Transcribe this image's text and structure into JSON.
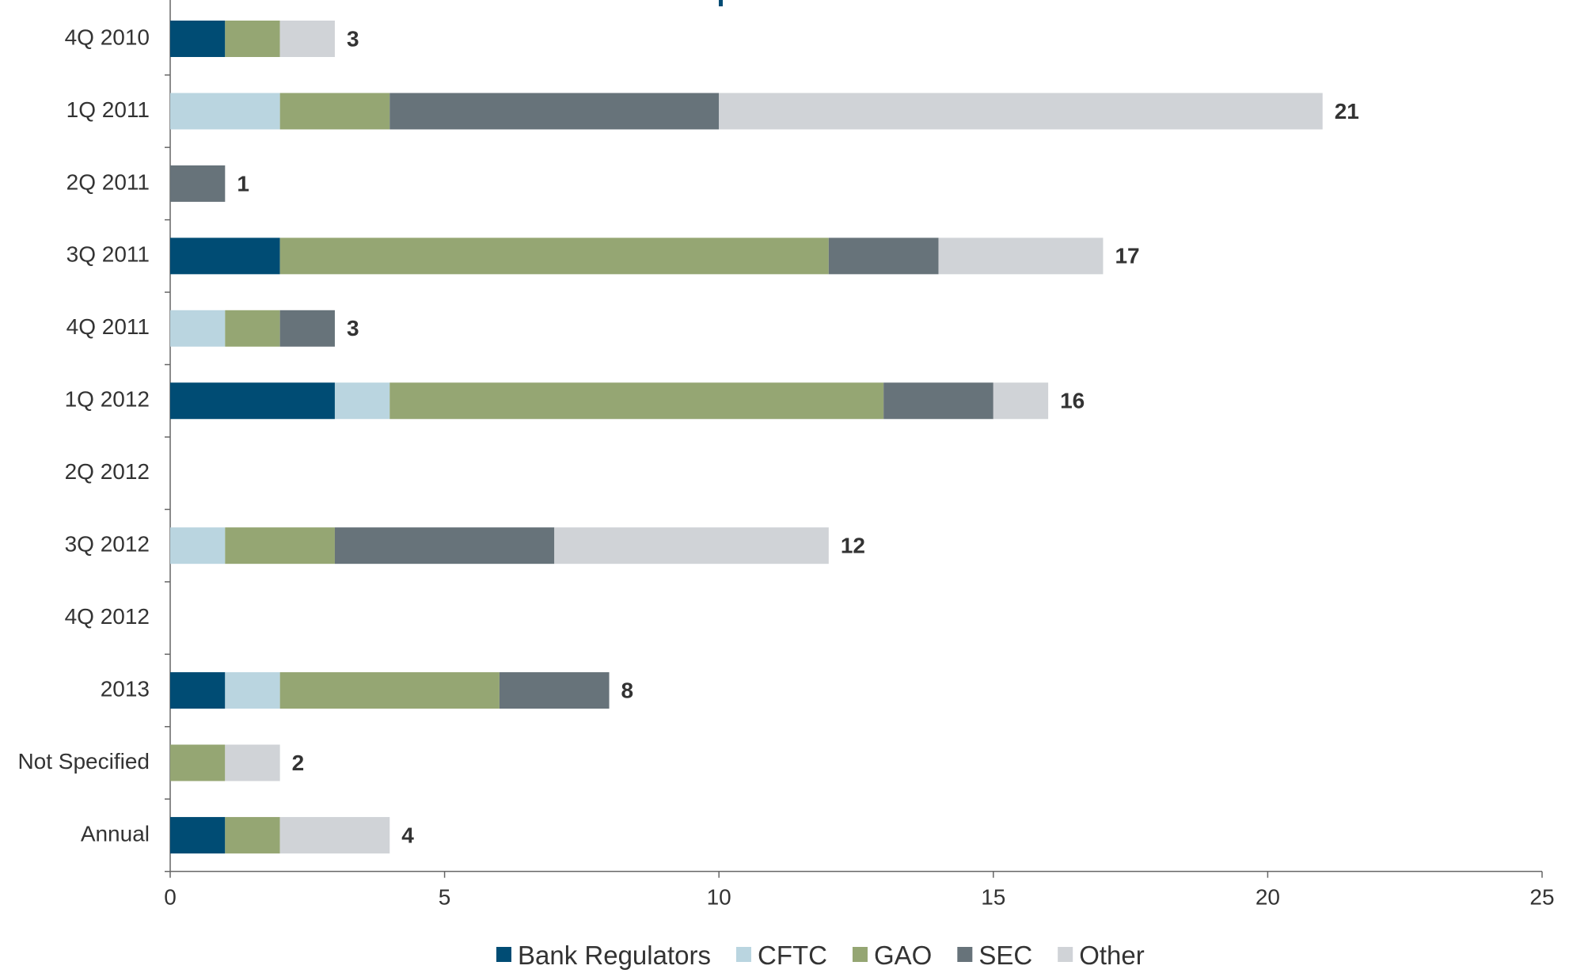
{
  "chart_data": {
    "type": "bar",
    "orientation": "horizontal",
    "stacked": true,
    "categories": [
      "4Q 2010",
      "1Q 2011",
      "2Q 2011",
      "3Q 2011",
      "4Q 2011",
      "1Q 2012",
      "2Q 2012",
      "3Q 2012",
      "4Q 2012",
      "2013",
      "Not Specified",
      "Annual"
    ],
    "series": [
      {
        "name": "Bank Regulators",
        "color": "#004c74",
        "values": [
          1,
          0,
          0,
          2,
          0,
          3,
          0,
          0,
          0,
          1,
          0,
          1
        ]
      },
      {
        "name": "CFTC",
        "color": "#bad5e0",
        "values": [
          0,
          2,
          0,
          0,
          1,
          1,
          0,
          1,
          0,
          1,
          0,
          0
        ]
      },
      {
        "name": "GAO",
        "color": "#95a673",
        "values": [
          1,
          2,
          0,
          10,
          1,
          9,
          0,
          2,
          0,
          4,
          1,
          1
        ]
      },
      {
        "name": "SEC",
        "color": "#67737a",
        "values": [
          0,
          6,
          1,
          2,
          1,
          2,
          0,
          4,
          0,
          2,
          0,
          0
        ]
      },
      {
        "name": "Other",
        "color": "#d0d3d7",
        "values": [
          1,
          11,
          0,
          3,
          0,
          1,
          0,
          5,
          0,
          0,
          1,
          2
        ]
      }
    ],
    "totals": [
      "3",
      "21",
      "1",
      "17",
      "3",
      "16",
      "",
      "12",
      "",
      "8",
      "2",
      "4"
    ],
    "xlim": [
      0,
      25
    ],
    "xticks": [
      0,
      5,
      10,
      15,
      20,
      25
    ],
    "xtick_labels": [
      "0",
      "5",
      "10",
      "15",
      "20",
      "25"
    ],
    "grid": false,
    "legend_position": "bottom",
    "title": "",
    "xlabel": "",
    "ylabel": ""
  }
}
